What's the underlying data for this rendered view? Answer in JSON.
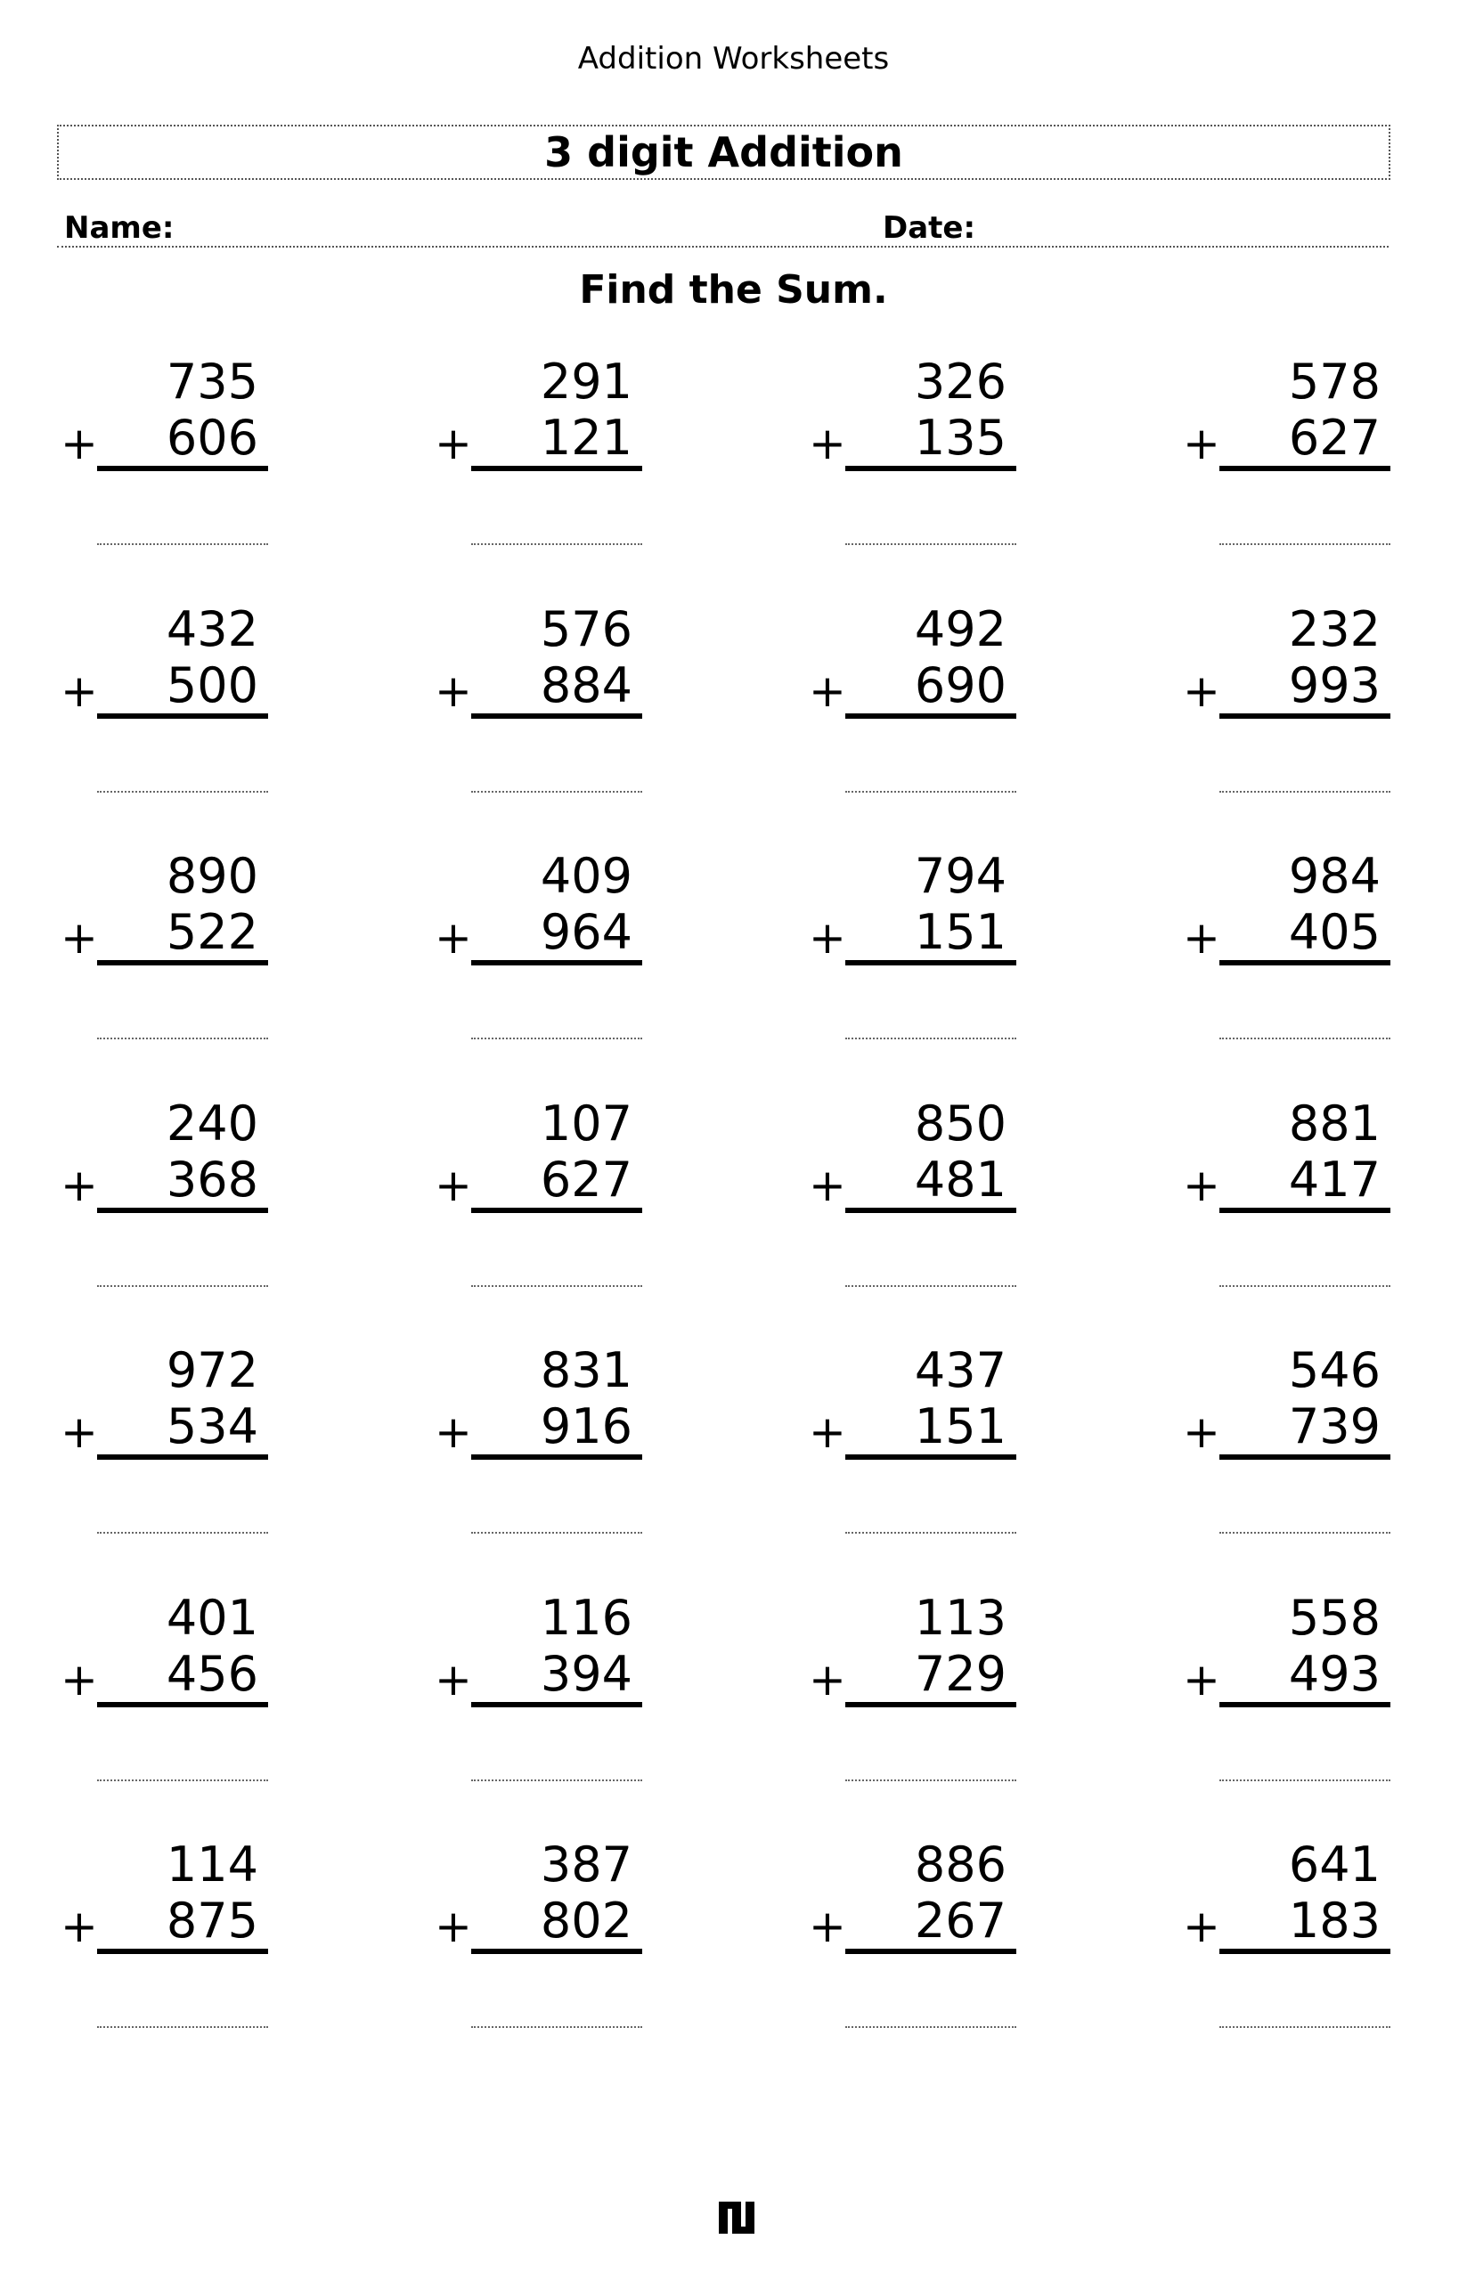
{
  "header": {
    "site_title": "Addition Worksheets",
    "worksheet_title": "3 digit Addition",
    "name_label": "Name:",
    "date_label": "Date:",
    "instruction": "Find the Sum."
  },
  "operator": "+",
  "problems": [
    {
      "top": "735",
      "bottom": "606"
    },
    {
      "top": "291",
      "bottom": "121"
    },
    {
      "top": "326",
      "bottom": "135"
    },
    {
      "top": "578",
      "bottom": "627"
    },
    {
      "top": "432",
      "bottom": "500"
    },
    {
      "top": "576",
      "bottom": "884"
    },
    {
      "top": "492",
      "bottom": "690"
    },
    {
      "top": "232",
      "bottom": "993"
    },
    {
      "top": "890",
      "bottom": "522"
    },
    {
      "top": "409",
      "bottom": "964"
    },
    {
      "top": "794",
      "bottom": "151"
    },
    {
      "top": "984",
      "bottom": "405"
    },
    {
      "top": "240",
      "bottom": "368"
    },
    {
      "top": "107",
      "bottom": "627"
    },
    {
      "top": "850",
      "bottom": "481"
    },
    {
      "top": "881",
      "bottom": "417"
    },
    {
      "top": "972",
      "bottom": "534"
    },
    {
      "top": "831",
      "bottom": "916"
    },
    {
      "top": "437",
      "bottom": "151"
    },
    {
      "top": "546",
      "bottom": "739"
    },
    {
      "top": "401",
      "bottom": "456"
    },
    {
      "top": "116",
      "bottom": "394"
    },
    {
      "top": "113",
      "bottom": "729"
    },
    {
      "top": "558",
      "bottom": "493"
    },
    {
      "top": "114",
      "bottom": "875"
    },
    {
      "top": "387",
      "bottom": "802"
    },
    {
      "top": "886",
      "bottom": "267"
    },
    {
      "top": "641",
      "bottom": "183"
    }
  ],
  "footer": {
    "logo_icon": "site-logo-icon"
  }
}
